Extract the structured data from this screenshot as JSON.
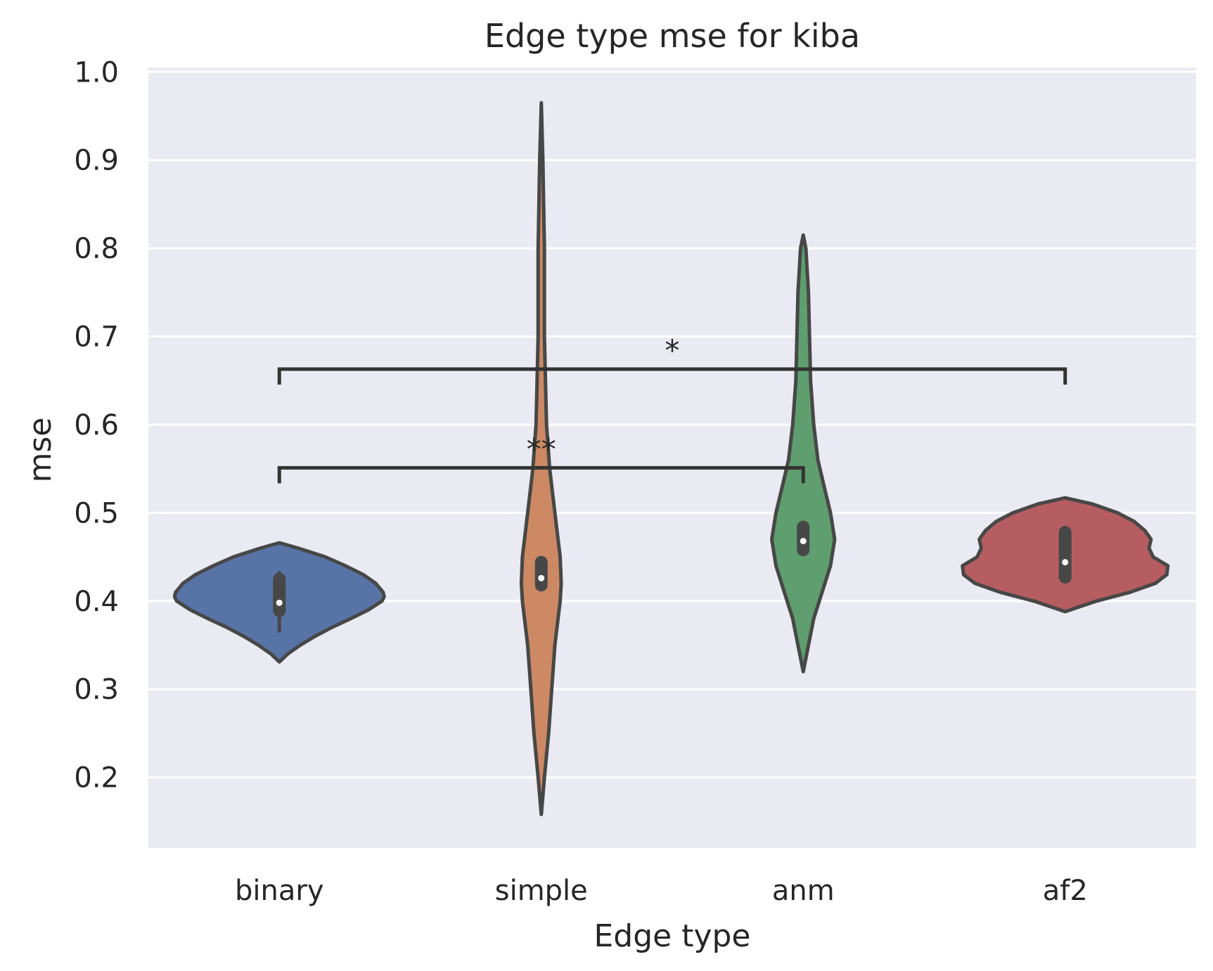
{
  "chart_data": {
    "type": "violin",
    "title": "Edge type mse for kiba",
    "xlabel": "Edge type",
    "ylabel": "mse",
    "ylim": [
      0.12,
      1.005
    ],
    "yticks": [
      0.2,
      0.3,
      0.4,
      0.5,
      0.6,
      0.7,
      0.8,
      0.9,
      1.0
    ],
    "ytick_labels": [
      "0.2",
      "0.3",
      "0.4",
      "0.5",
      "0.6",
      "0.7",
      "0.8",
      "0.9",
      "1.0"
    ],
    "grid": true,
    "categories": [
      "binary",
      "simple",
      "anm",
      "af2"
    ],
    "series": [
      {
        "category": "binary",
        "color": "#5874a6",
        "min": 0.331,
        "max": 0.466,
        "median": 0.398,
        "q1": 0.389,
        "q3": 0.425,
        "whisker_low": 0.366,
        "whisker_high": 0.432,
        "density": [
          [
            0.331,
            0.0
          ],
          [
            0.34,
            0.08
          ],
          [
            0.35,
            0.2
          ],
          [
            0.36,
            0.34
          ],
          [
            0.37,
            0.5
          ],
          [
            0.38,
            0.68
          ],
          [
            0.39,
            0.85
          ],
          [
            0.4,
            0.98
          ],
          [
            0.405,
            1.0
          ],
          [
            0.41,
            0.99
          ],
          [
            0.42,
            0.92
          ],
          [
            0.43,
            0.8
          ],
          [
            0.44,
            0.63
          ],
          [
            0.45,
            0.44
          ],
          [
            0.46,
            0.18
          ],
          [
            0.466,
            0.0
          ]
        ]
      },
      {
        "category": "simple",
        "color": "#cc8963",
        "min": 0.158,
        "max": 0.965,
        "median": 0.426,
        "q1": 0.418,
        "q3": 0.444,
        "whisker_low": 0.418,
        "whisker_high": 0.444,
        "density": [
          [
            0.158,
            0.0
          ],
          [
            0.2,
            0.03
          ],
          [
            0.25,
            0.07
          ],
          [
            0.3,
            0.1
          ],
          [
            0.35,
            0.13
          ],
          [
            0.4,
            0.18
          ],
          [
            0.42,
            0.19
          ],
          [
            0.45,
            0.18
          ],
          [
            0.5,
            0.13
          ],
          [
            0.55,
            0.08
          ],
          [
            0.6,
            0.05
          ],
          [
            0.65,
            0.04
          ],
          [
            0.7,
            0.03
          ],
          [
            0.8,
            0.03
          ],
          [
            0.9,
            0.015
          ],
          [
            0.965,
            0.0
          ]
        ]
      },
      {
        "category": "anm",
        "color": "#5f9e6e",
        "min": 0.32,
        "max": 0.815,
        "median": 0.468,
        "q1": 0.458,
        "q3": 0.484,
        "whisker_low": 0.458,
        "whisker_high": 0.484,
        "density": [
          [
            0.32,
            0.0
          ],
          [
            0.35,
            0.05
          ],
          [
            0.38,
            0.1
          ],
          [
            0.41,
            0.18
          ],
          [
            0.44,
            0.26
          ],
          [
            0.47,
            0.3
          ],
          [
            0.5,
            0.26
          ],
          [
            0.53,
            0.2
          ],
          [
            0.56,
            0.14
          ],
          [
            0.6,
            0.1
          ],
          [
            0.65,
            0.07
          ],
          [
            0.7,
            0.06
          ],
          [
            0.75,
            0.05
          ],
          [
            0.8,
            0.025
          ],
          [
            0.815,
            0.0
          ]
        ]
      },
      {
        "category": "af2",
        "color": "#b55d60",
        "min": 0.388,
        "max": 0.517,
        "median": 0.444,
        "q1": 0.427,
        "q3": 0.478,
        "whisker_low": 0.427,
        "whisker_high": 0.478,
        "density": [
          [
            0.388,
            0.0
          ],
          [
            0.4,
            0.3
          ],
          [
            0.41,
            0.62
          ],
          [
            0.42,
            0.86
          ],
          [
            0.43,
            0.97
          ],
          [
            0.44,
            0.98
          ],
          [
            0.45,
            0.84
          ],
          [
            0.46,
            0.8
          ],
          [
            0.47,
            0.82
          ],
          [
            0.48,
            0.76
          ],
          [
            0.49,
            0.66
          ],
          [
            0.5,
            0.5
          ],
          [
            0.51,
            0.26
          ],
          [
            0.517,
            0.0
          ]
        ]
      }
    ],
    "annotations": [
      {
        "text": "**",
        "from": "binary",
        "to": "anm",
        "y": 0.551
      },
      {
        "text": "*",
        "from": "binary",
        "to": "af2",
        "y": 0.663
      }
    ]
  }
}
